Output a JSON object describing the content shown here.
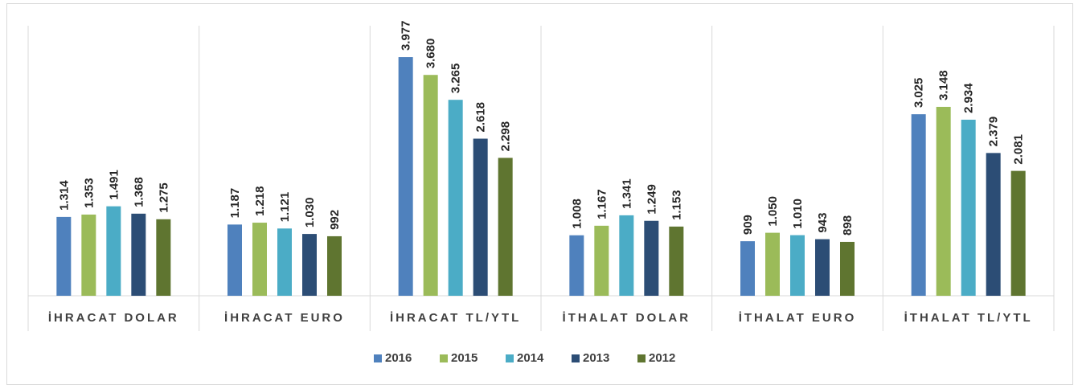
{
  "chart_data": {
    "type": "bar",
    "categories": [
      "İHRACAT DOLAR",
      "İHRACAT EURO",
      "İHRACAT TL/YTL",
      "İTHALAT DOLAR",
      "İTHALAT EURO",
      "İTHALAT TL/YTL"
    ],
    "series": [
      {
        "name": "2016",
        "color": "#4f81bd",
        "values": [
          1314,
          1187,
          3977,
          1008,
          909,
          3025
        ],
        "value_labels": [
          "1.314",
          "1.187",
          "3.977",
          "1.008",
          "909",
          "3.025"
        ]
      },
      {
        "name": "2015",
        "color": "#9bbb59",
        "values": [
          1353,
          1218,
          3680,
          1167,
          1050,
          3148
        ],
        "value_labels": [
          "1.353",
          "1.218",
          "3.680",
          "1.167",
          "1.050",
          "3.148"
        ]
      },
      {
        "name": "2014",
        "color": "#4bacc6",
        "values": [
          1491,
          1121,
          3265,
          1341,
          1010,
          2934
        ],
        "value_labels": [
          "1.491",
          "1.121",
          "3.265",
          "1.341",
          "1.010",
          "2.934"
        ]
      },
      {
        "name": "2013",
        "color": "#2c4d75",
        "values": [
          1368,
          1030,
          2618,
          1249,
          943,
          2379
        ],
        "value_labels": [
          "1.368",
          "1.030",
          "2.618",
          "1.249",
          "943",
          "2.379"
        ]
      },
      {
        "name": "2012",
        "color": "#5f7530",
        "values": [
          1275,
          992,
          2298,
          1153,
          898,
          2081
        ],
        "value_labels": [
          "1.275",
          "992",
          "2.298",
          "1.153",
          "898",
          "2.081"
        ]
      }
    ],
    "ylim": [
      0,
      4500
    ],
    "legend": "bottom"
  }
}
